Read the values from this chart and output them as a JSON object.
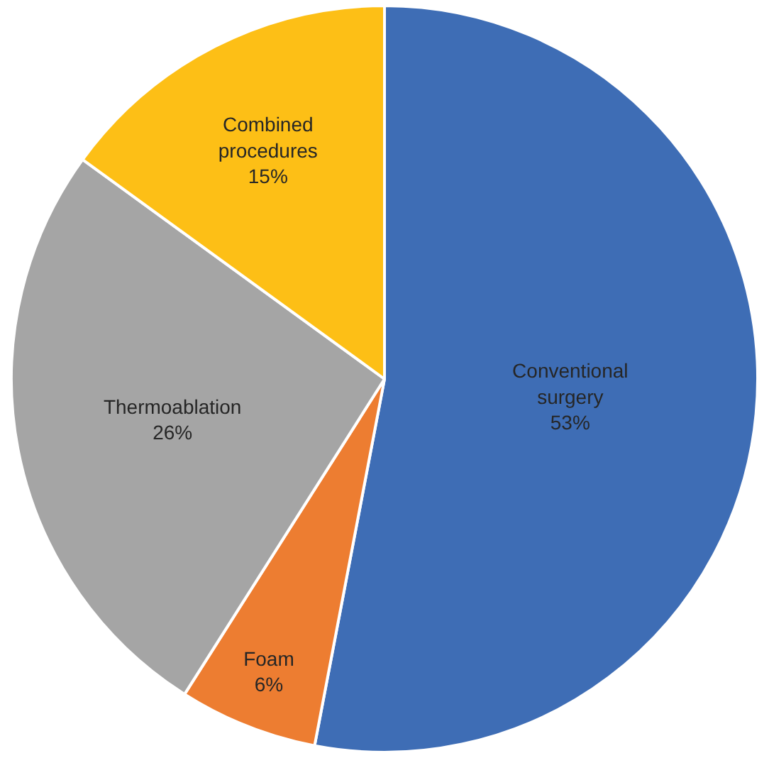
{
  "chart_data": {
    "type": "pie",
    "categories": [
      "Conventional surgery",
      "Foam",
      "Thermoablation",
      "Combined procedures"
    ],
    "values": [
      53,
      6,
      26,
      15
    ],
    "value_labels": [
      "53%",
      "6%",
      "26%",
      "15%"
    ],
    "colors": [
      "#3e6db5",
      "#ed7d31",
      "#a5a5a5",
      "#fdbf16"
    ],
    "legend": false
  }
}
